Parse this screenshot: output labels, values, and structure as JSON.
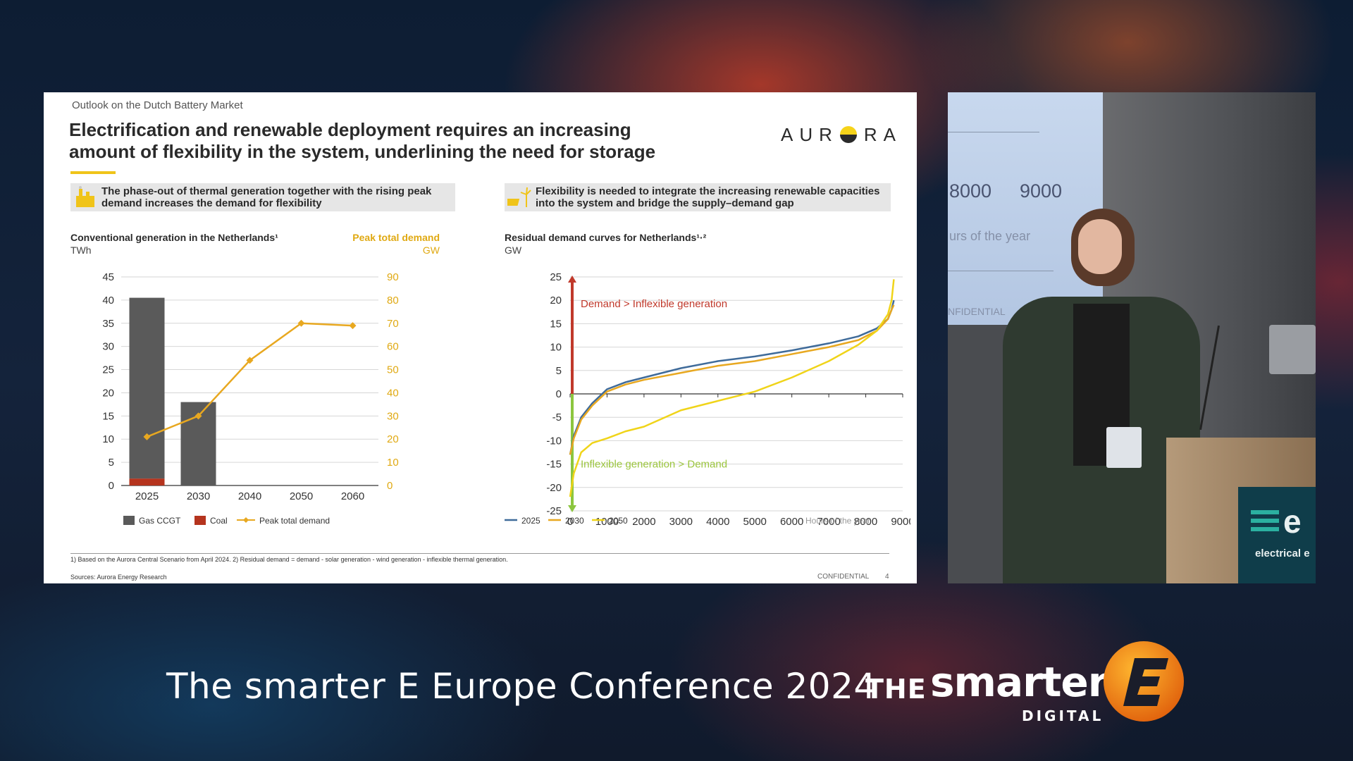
{
  "slide": {
    "kicker": "Outlook on the Dutch Battery Market",
    "title_line1": "Electrification and renewable deployment requires an increasing",
    "title_line2": "amount of flexibility in the system, underlining the need for storage",
    "logo": "AUR",
    "logo_end": "RA",
    "callout_left_l1": "The phase-out of thermal generation together with the rising peak",
    "callout_left_l2": "demand increases the demand for flexibility",
    "callout_right_l1": "Flexibility is needed to integrate the increasing renewable capacities",
    "callout_right_l2": "into the system and bridge the supply–demand gap",
    "footnote": "1) Based on the Aurora Central Scenario from April 2024. 2) Residual demand = demand - solar generation - wind generation - inflexible thermal generation.",
    "sources": "Sources: Aurora Energy Research",
    "confidential": "CONFIDENTIAL",
    "page_number": "4",
    "accent_color": "#f0c419"
  },
  "chart_data": [
    {
      "type": "bar",
      "title": "Conventional generation in the Netherlands¹",
      "ylabel": "TWh",
      "ylabel_right": "GW",
      "right_title": "Peak total demand",
      "categories": [
        "2025",
        "2030",
        "2040",
        "2050",
        "2060"
      ],
      "ylim": [
        0,
        45
      ],
      "ylim_right": [
        0,
        90
      ],
      "yticks": [
        "0",
        "5",
        "10",
        "15",
        "20",
        "25",
        "30",
        "35",
        "40",
        "45"
      ],
      "yticks_right": [
        "0",
        "10",
        "20",
        "30",
        "40",
        "50",
        "60",
        "70",
        "80",
        "90"
      ],
      "series": [
        {
          "name": "Gas CCGT",
          "values": [
            39,
            18,
            0,
            0,
            0
          ],
          "color": "#5a5a5a"
        },
        {
          "name": "Coal",
          "values": [
            1.5,
            0,
            0,
            0,
            0
          ],
          "color": "#b5341e"
        },
        {
          "name": "Peak total demand",
          "values": [
            21,
            30,
            54,
            70,
            69
          ],
          "color": "#e8a820",
          "axis": "right"
        }
      ],
      "legend": [
        "Gas CCGT",
        "Coal",
        "Peak total demand"
      ],
      "grid": true,
      "legend_position": "bottom-left"
    },
    {
      "type": "line",
      "title": "Residual demand curves for Netherlands¹·²",
      "ylabel": "GW",
      "xlabel": "Hours of the year",
      "xlim": [
        0,
        9000
      ],
      "ylim": [
        -25,
        25
      ],
      "xticks": [
        "0",
        "1000",
        "2000",
        "3000",
        "4000",
        "5000",
        "6000",
        "7000",
        "8000",
        "9000"
      ],
      "yticks": [
        "-25",
        "-20",
        "-15",
        "-10",
        "-5",
        "0",
        "5",
        "10",
        "15",
        "20",
        "25"
      ],
      "x": [
        0,
        100,
        300,
        600,
        1000,
        1500,
        2000,
        3000,
        4000,
        5000,
        6000,
        7000,
        7800,
        8300,
        8600,
        8700,
        8760
      ],
      "series": [
        {
          "name": "2025",
          "color": "#3f6b9a",
          "values": [
            -13,
            -9,
            -5,
            -2,
            1,
            2.5,
            3.5,
            5.5,
            7,
            8,
            9.3,
            10.8,
            12.3,
            14,
            16,
            18,
            20
          ]
        },
        {
          "name": "2030",
          "color": "#e8a820",
          "values": [
            -13,
            -9.5,
            -5.5,
            -2.5,
            0.5,
            2,
            3,
            4.5,
            6,
            7,
            8.5,
            10,
            11.5,
            13.5,
            16,
            18,
            19
          ]
        },
        {
          "name": "2050",
          "color": "#f0d419",
          "values": [
            -22,
            -17,
            -12.5,
            -10.5,
            -9.5,
            -8,
            -7,
            -3.5,
            -1.5,
            0.5,
            3.5,
            7,
            10.5,
            13.5,
            17,
            20,
            24.5
          ]
        }
      ],
      "annotations": [
        "Demand > Inflexible generation",
        "Inflexible generation > Demand"
      ],
      "legend": [
        "2025",
        "2030",
        "2050"
      ],
      "grid": true,
      "legend_position": "bottom-left"
    }
  ],
  "camera": {
    "screen_numbers": [
      "8000",
      "9000"
    ],
    "screen_text_1": "urs of the year",
    "screen_text_2": "NFIDENTIAL",
    "podium_text": "electrical e"
  },
  "banner": {
    "conference_title": "The smarter E Europe Conference 2024",
    "brand_the": "THE",
    "brand_smarter": "smarter",
    "brand_digital": "DIGITAL",
    "brand_e_color": "#f08c14"
  }
}
